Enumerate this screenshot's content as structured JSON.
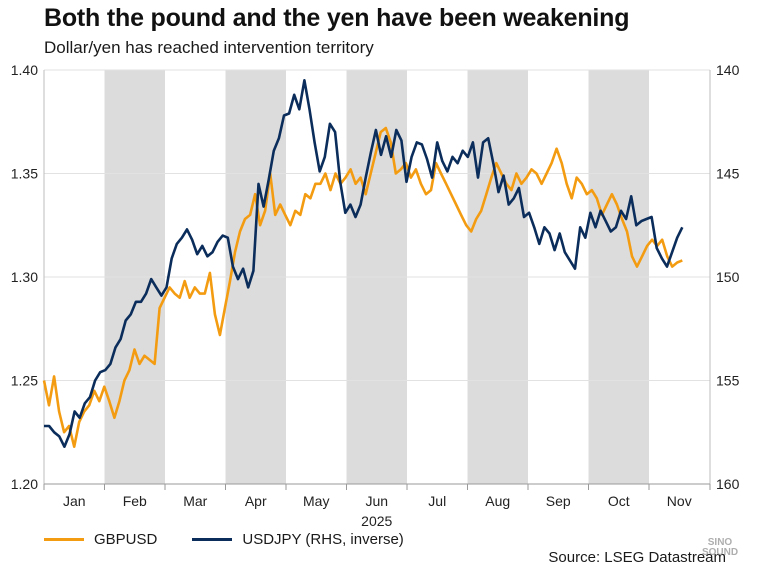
{
  "title": "Both the pound and the yen have been weakening",
  "subtitle": "Dollar/yen has reached intervention territory",
  "source": "Source: LSEG Datastream",
  "watermark": "SINO SOUND",
  "colors": {
    "gbpusd": "#F39C12",
    "usdjpy": "#0B2D5B",
    "band": "#DCDCDC",
    "grid": "#E2E2E2"
  },
  "chart_data": {
    "type": "line",
    "title": "Both the pound and the yen have been weakening",
    "subtitle": "Dollar/yen has reached intervention territory",
    "x_axis": {
      "months": [
        "Jan",
        "Feb",
        "Mar",
        "Apr",
        "May",
        "Jun",
        "Jul",
        "Aug",
        "Sep",
        "Oct",
        "Nov"
      ],
      "year_label": "2025",
      "range_months": [
        0,
        10.55
      ],
      "shaded_months": [
        "Feb",
        "Apr",
        "Jun",
        "Aug",
        "Oct"
      ]
    },
    "y_left": {
      "range": [
        1.2,
        1.4
      ],
      "ticks": [
        "1.20",
        "1.25",
        "1.30",
        "1.35",
        "1.40"
      ]
    },
    "y_right": {
      "range": [
        140,
        160
      ],
      "inverted": true,
      "ticks": [
        "140",
        "145",
        "150",
        "155",
        "160"
      ]
    },
    "grid": "horizontal",
    "legend_position": "bottom-left",
    "series": [
      {
        "name": "GBPUSD",
        "axis": "left",
        "points": [
          [
            0.0,
            1.25
          ],
          [
            0.1,
            1.238
          ],
          [
            0.2,
            1.252
          ],
          [
            0.3,
            1.235
          ],
          [
            0.4,
            1.225
          ],
          [
            0.5,
            1.228
          ],
          [
            0.58,
            1.218
          ],
          [
            0.65,
            1.23
          ],
          [
            0.75,
            1.235
          ],
          [
            0.85,
            1.238
          ],
          [
            0.95,
            1.245
          ],
          [
            1.05,
            1.24
          ],
          [
            1.2,
            1.247
          ],
          [
            1.3,
            1.24
          ],
          [
            1.4,
            1.232
          ],
          [
            1.5,
            1.24
          ],
          [
            1.6,
            1.25
          ],
          [
            1.75,
            1.255
          ],
          [
            1.85,
            1.265
          ],
          [
            1.95,
            1.258
          ],
          [
            2.05,
            1.262
          ],
          [
            2.15,
            1.26
          ],
          [
            2.25,
            1.258
          ],
          [
            2.35,
            1.285
          ],
          [
            2.45,
            1.29
          ],
          [
            2.55,
            1.295
          ],
          [
            2.65,
            1.292
          ],
          [
            2.75,
            1.29
          ],
          [
            2.85,
            1.298
          ],
          [
            2.95,
            1.29
          ],
          [
            3.05,
            1.295
          ],
          [
            3.15,
            1.292
          ],
          [
            3.25,
            1.292
          ],
          [
            3.3,
            1.302
          ],
          [
            3.37,
            1.282
          ],
          [
            3.45,
            1.272
          ],
          [
            3.52,
            1.285
          ],
          [
            3.6,
            1.298
          ],
          [
            3.7,
            1.312
          ],
          [
            3.8,
            1.322
          ],
          [
            3.9,
            1.328
          ],
          [
            4.0,
            1.33
          ],
          [
            4.05,
            1.34
          ],
          [
            4.12,
            1.325
          ],
          [
            4.2,
            1.332
          ],
          [
            4.3,
            1.35
          ],
          [
            4.4,
            1.33
          ],
          [
            4.5,
            1.335
          ],
          [
            4.6,
            1.33
          ],
          [
            4.7,
            1.325
          ],
          [
            4.8,
            1.332
          ],
          [
            4.9,
            1.33
          ],
          [
            5.0,
            1.34
          ],
          [
            5.1,
            1.338
          ],
          [
            5.2,
            1.345
          ],
          [
            5.3,
            1.345
          ],
          [
            5.4,
            1.35
          ],
          [
            5.5,
            1.342
          ],
          [
            5.6,
            1.35
          ],
          [
            5.7,
            1.345
          ],
          [
            5.8,
            1.348
          ],
          [
            5.9,
            1.352
          ],
          [
            6.0,
            1.345
          ],
          [
            6.1,
            1.348
          ],
          [
            6.15,
            1.34
          ],
          [
            6.25,
            1.35
          ],
          [
            6.35,
            1.36
          ],
          [
            6.45,
            1.37
          ],
          [
            6.52,
            1.372
          ],
          [
            6.6,
            1.365
          ],
          [
            6.7,
            1.35
          ],
          [
            6.8,
            1.352
          ],
          [
            6.9,
            1.355
          ],
          [
            7.0,
            1.348
          ],
          [
            7.1,
            1.352
          ],
          [
            7.2,
            1.345
          ],
          [
            7.3,
            1.34
          ],
          [
            7.4,
            1.342
          ],
          [
            7.5,
            1.355
          ],
          [
            7.55,
            1.35
          ],
          [
            7.65,
            1.345
          ],
          [
            7.75,
            1.34
          ],
          [
            7.85,
            1.335
          ],
          [
            7.95,
            1.33
          ],
          [
            8.05,
            1.325
          ],
          [
            8.15,
            1.322
          ],
          [
            8.25,
            1.328
          ],
          [
            8.35,
            1.332
          ],
          [
            8.45,
            1.34
          ],
          [
            8.55,
            1.348
          ],
          [
            8.65,
            1.355
          ],
          [
            8.75,
            1.35
          ],
          [
            8.85,
            1.345
          ],
          [
            8.95,
            1.342
          ],
          [
            9.05,
            1.35
          ],
          [
            9.15,
            1.345
          ],
          [
            9.25,
            1.348
          ],
          [
            9.35,
            1.352
          ],
          [
            9.45,
            1.35
          ],
          [
            9.55,
            1.345
          ],
          [
            9.65,
            1.35
          ],
          [
            9.75,
            1.355
          ],
          [
            9.85,
            1.362
          ],
          [
            9.95,
            1.355
          ],
          [
            10.05,
            1.345
          ],
          [
            10.15,
            1.338
          ],
          [
            10.25,
            1.348
          ],
          [
            10.35,
            1.345
          ],
          [
            10.45,
            1.34
          ],
          [
            10.55,
            1.342
          ],
          [
            10.65,
            1.338
          ],
          [
            10.75,
            1.33
          ],
          [
            10.85,
            1.335
          ],
          [
            10.95,
            1.34
          ],
          [
            11.05,
            1.335
          ],
          [
            11.15,
            1.328
          ],
          [
            11.25,
            1.322
          ],
          [
            11.35,
            1.31
          ],
          [
            11.45,
            1.305
          ],
          [
            11.55,
            1.31
          ],
          [
            11.65,
            1.315
          ],
          [
            11.75,
            1.318
          ],
          [
            11.85,
            1.315
          ],
          [
            11.95,
            1.318
          ],
          [
            12.05,
            1.31
          ],
          [
            12.15,
            1.305
          ],
          [
            12.25,
            1.307
          ],
          [
            12.35,
            1.308
          ]
        ]
      },
      {
        "name": "USDJPY (RHS, inverse)",
        "axis": "right",
        "points": [
          [
            0.0,
            157.2
          ],
          [
            0.1,
            157.2
          ],
          [
            0.2,
            157.5
          ],
          [
            0.3,
            157.7
          ],
          [
            0.4,
            158.2
          ],
          [
            0.5,
            157.6
          ],
          [
            0.6,
            156.5
          ],
          [
            0.7,
            156.8
          ],
          [
            0.8,
            156.1
          ],
          [
            0.9,
            155.8
          ],
          [
            1.0,
            155.0
          ],
          [
            1.1,
            154.6
          ],
          [
            1.2,
            154.5
          ],
          [
            1.3,
            154.2
          ],
          [
            1.4,
            153.4
          ],
          [
            1.5,
            153.0
          ],
          [
            1.6,
            152.1
          ],
          [
            1.7,
            151.8
          ],
          [
            1.8,
            151.2
          ],
          [
            1.9,
            151.2
          ],
          [
            2.0,
            150.8
          ],
          [
            2.1,
            150.1
          ],
          [
            2.2,
            150.5
          ],
          [
            2.3,
            150.9
          ],
          [
            2.4,
            150.5
          ],
          [
            2.5,
            149.1
          ],
          [
            2.6,
            148.4
          ],
          [
            2.7,
            148.1
          ],
          [
            2.8,
            147.7
          ],
          [
            2.9,
            148.2
          ],
          [
            3.0,
            148.9
          ],
          [
            3.1,
            148.5
          ],
          [
            3.15,
            149.0
          ],
          [
            3.25,
            148.8
          ],
          [
            3.35,
            148.3
          ],
          [
            3.45,
            148.0
          ],
          [
            3.55,
            148.1
          ],
          [
            3.65,
            149.5
          ],
          [
            3.75,
            150.1
          ],
          [
            3.85,
            149.6
          ],
          [
            3.95,
            150.5
          ],
          [
            4.05,
            149.7
          ],
          [
            4.1,
            145.5
          ],
          [
            4.2,
            146.6
          ],
          [
            4.3,
            145.3
          ],
          [
            4.4,
            143.9
          ],
          [
            4.5,
            143.3
          ],
          [
            4.6,
            142.2
          ],
          [
            4.7,
            142.1
          ],
          [
            4.8,
            141.2
          ],
          [
            4.9,
            141.9
          ],
          [
            5.0,
            140.5
          ],
          [
            5.05,
            141.9
          ],
          [
            5.15,
            143.5
          ],
          [
            5.25,
            144.9
          ],
          [
            5.35,
            144.2
          ],
          [
            5.45,
            142.6
          ],
          [
            5.55,
            143.0
          ],
          [
            5.65,
            145.4
          ],
          [
            5.75,
            146.9
          ],
          [
            5.85,
            146.5
          ],
          [
            5.95,
            147.1
          ],
          [
            6.05,
            146.5
          ],
          [
            6.15,
            145.2
          ],
          [
            6.25,
            144.0
          ],
          [
            6.35,
            142.9
          ],
          [
            6.45,
            144.1
          ],
          [
            6.55,
            143.2
          ],
          [
            6.65,
            144.2
          ],
          [
            6.75,
            142.9
          ],
          [
            6.85,
            143.4
          ],
          [
            6.95,
            145.4
          ],
          [
            7.05,
            144.2
          ],
          [
            7.15,
            143.5
          ],
          [
            7.25,
            143.6
          ],
          [
            7.35,
            144.3
          ],
          [
            7.45,
            145.2
          ],
          [
            7.55,
            143.5
          ],
          [
            7.65,
            144.4
          ],
          [
            7.75,
            144.9
          ],
          [
            7.85,
            144.2
          ],
          [
            7.95,
            144.5
          ],
          [
            8.05,
            143.9
          ],
          [
            8.15,
            144.2
          ],
          [
            8.25,
            143.5
          ],
          [
            8.35,
            145.2
          ],
          [
            8.45,
            143.5
          ],
          [
            8.55,
            143.3
          ],
          [
            8.65,
            144.5
          ],
          [
            8.75,
            145.9
          ],
          [
            8.85,
            145.1
          ],
          [
            8.95,
            146.5
          ],
          [
            9.05,
            146.2
          ],
          [
            9.15,
            145.7
          ],
          [
            9.25,
            147.1
          ],
          [
            9.35,
            146.9
          ],
          [
            9.45,
            147.6
          ],
          [
            9.55,
            148.4
          ],
          [
            9.65,
            147.6
          ],
          [
            9.75,
            147.9
          ],
          [
            9.85,
            148.7
          ],
          [
            9.95,
            147.9
          ],
          [
            10.05,
            148.8
          ],
          [
            10.15,
            149.2
          ],
          [
            10.25,
            149.6
          ],
          [
            10.35,
            147.6
          ],
          [
            10.45,
            148.1
          ],
          [
            10.55,
            146.9
          ],
          [
            10.65,
            147.6
          ],
          [
            10.75,
            146.8
          ],
          [
            10.85,
            147.3
          ],
          [
            10.95,
            147.8
          ],
          [
            11.05,
            147.6
          ],
          [
            11.15,
            146.8
          ],
          [
            11.25,
            147.2
          ],
          [
            11.35,
            146.1
          ],
          [
            11.45,
            147.5
          ],
          [
            11.55,
            147.3
          ],
          [
            11.65,
            147.2
          ],
          [
            11.75,
            147.1
          ],
          [
            11.85,
            148.6
          ],
          [
            11.95,
            149.1
          ],
          [
            12.05,
            149.5
          ],
          [
            12.15,
            148.8
          ],
          [
            12.25,
            148.1
          ],
          [
            12.35,
            147.6
          ]
        ]
      }
    ]
  },
  "legend": {
    "gbpusd_label": "GBPUSD",
    "usdjpy_label": "USDJPY (RHS, inverse)"
  }
}
